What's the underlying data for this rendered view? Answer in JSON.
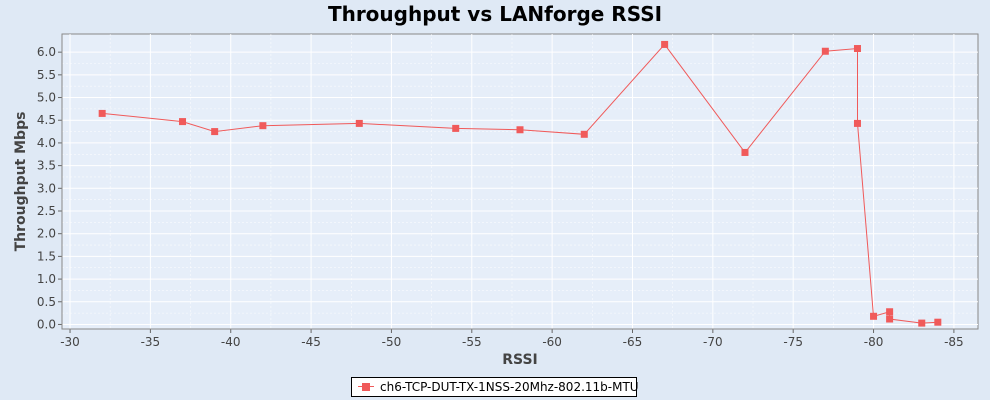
{
  "chart_data": {
    "type": "line",
    "title": "Throughput vs LANforge RSSI",
    "xlabel": "RSSI",
    "ylabel": "Throughput Mbps",
    "xlim": [
      -29.5,
      -86.5
    ],
    "ylim": [
      -0.1,
      6.4
    ],
    "x_ticks": [
      -30,
      -35,
      -40,
      -45,
      -50,
      -55,
      -60,
      -65,
      -70,
      -75,
      -80,
      -85
    ],
    "x_tick_labels": [
      "-30",
      "-35",
      "-40",
      "-45",
      "-50",
      "-55",
      "-60",
      "-65",
      "-70",
      "-75",
      "-80",
      "-85"
    ],
    "y_ticks": [
      0,
      0.5,
      1,
      1.5,
      2,
      2.5,
      3,
      3.5,
      4,
      4.5,
      5,
      5.5,
      6
    ],
    "y_tick_labels": [
      "0.0",
      "0.5",
      "1.0",
      "1.5",
      "2.0",
      "2.5",
      "3.0",
      "3.5",
      "4.0",
      "4.5",
      "5.0",
      "5.5",
      "6.0"
    ],
    "grid": true,
    "x_reversed": true,
    "legend_position": "bottom-center",
    "series": [
      {
        "name": "ch6-TCP-DUT-TX-1NSS-20Mhz-802.11b-MTU",
        "color": "#f05a5a",
        "marker": "square",
        "x": [
          -32,
          -37,
          -39,
          -42,
          -48,
          -54,
          -58,
          -62,
          -67,
          -72,
          -77,
          -79,
          -79,
          -80,
          -81,
          -81,
          -83,
          -84
        ],
        "y": [
          4.65,
          4.47,
          4.25,
          4.38,
          4.43,
          4.32,
          4.29,
          4.19,
          6.17,
          3.79,
          6.02,
          6.08,
          4.43,
          0.18,
          0.28,
          0.12,
          0.03,
          0.05
        ]
      }
    ]
  },
  "colors": {
    "background": "#dfe9f5",
    "plot_background": "#e6eef9",
    "gridline": "#ffffff",
    "series": "#f05a5a"
  }
}
